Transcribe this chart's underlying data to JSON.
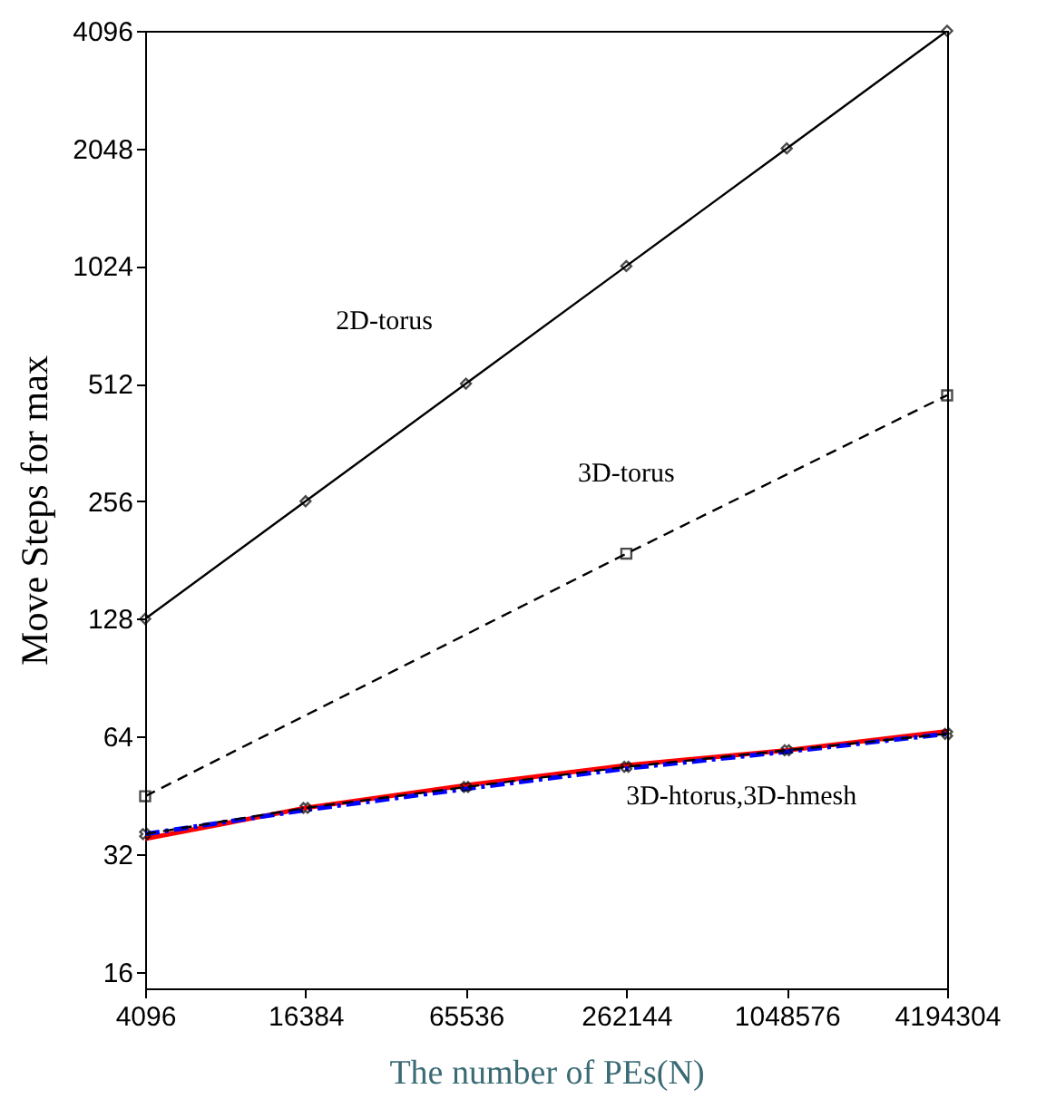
{
  "chart_data": {
    "type": "line",
    "xlabel": "The number of PEs(N)",
    "ylabel": "Move Steps for max",
    "log": "xy",
    "grid": false,
    "xlim": [
      4096,
      4194304
    ],
    "xticks": [
      4096,
      16384,
      65536,
      262144,
      1048576,
      4194304
    ],
    "ylim": [
      14.5,
      4096
    ],
    "yticks": [
      16,
      32,
      64,
      128,
      256,
      512,
      1024,
      2048,
      4096
    ],
    "series": [
      {
        "color": "#000000",
        "line_style": "solid",
        "marker": "diamond",
        "x": [
          4096,
          16384,
          65536,
          262144,
          1048576,
          4194304
        ],
        "values": [
          128,
          256,
          512,
          1024,
          2048,
          4096
        ]
      },
      {
        "color": "#000000",
        "line_style": "dashed",
        "marker": "square",
        "x": [
          4096,
          262144,
          4194304
        ],
        "values": [
          45,
          188,
          478
        ]
      },
      {
        "color": "#ff0000",
        "line_style": "solid",
        "marker": "none",
        "x": [
          4096,
          16384,
          65536,
          262144,
          1048576,
          4194304
        ],
        "values": [
          35,
          42,
          48,
          54,
          59,
          66
        ]
      },
      {
        "color": "#0000ff",
        "line_style": "dashdot",
        "marker": "none",
        "x": [
          4096,
          16384,
          65536,
          262144,
          1048576,
          4194304
        ],
        "values": [
          36,
          41.5,
          47,
          53,
          58.5,
          65
        ]
      },
      {
        "color": "#000000",
        "line_style": "dashed",
        "marker": "cross",
        "x": [
          4096,
          16384,
          65536,
          262144,
          1048576,
          4194304
        ],
        "values": [
          36,
          42,
          47.5,
          53.5,
          59,
          65
        ]
      }
    ],
    "annotations": [
      "2D-torus",
      "3D-torus",
      "3D-htorus,3D-hmesh"
    ]
  }
}
